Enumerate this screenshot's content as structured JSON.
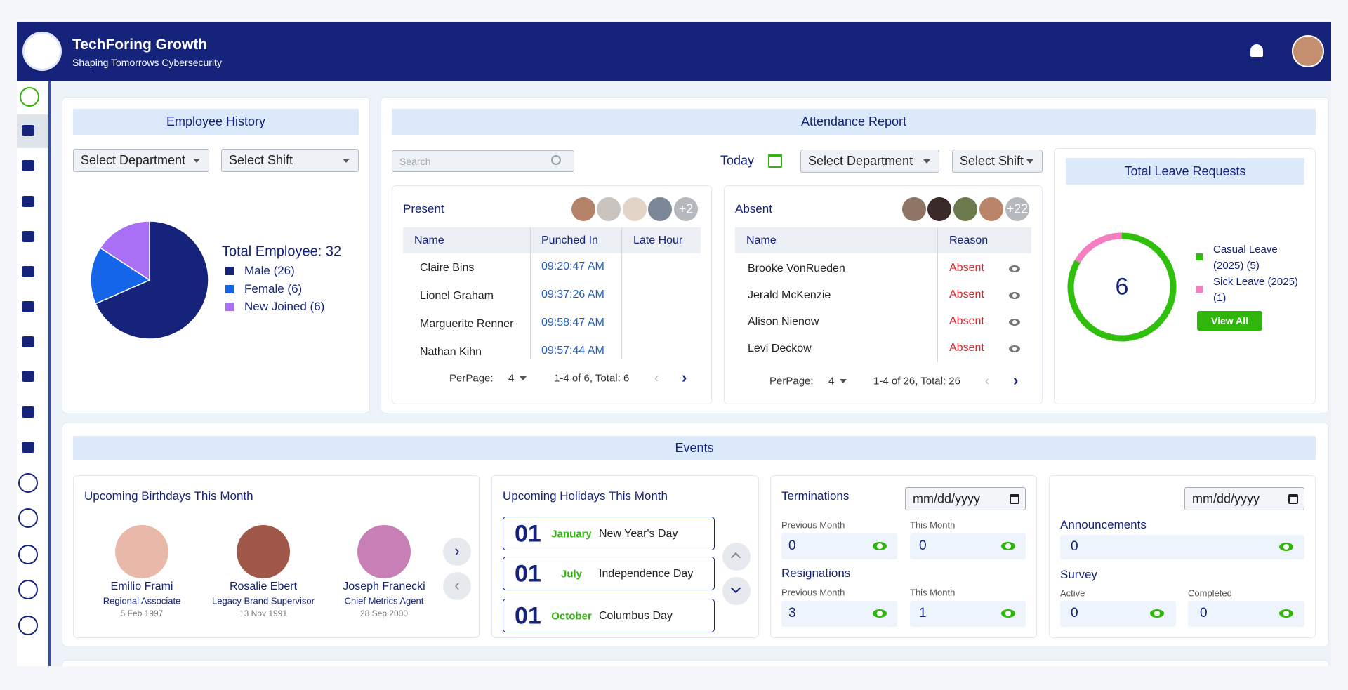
{
  "header": {
    "title": "TechForing Growth",
    "subtitle": "Shaping Tomorrows Cybersecurity"
  },
  "employee_history": {
    "title": "Employee History",
    "department_select": "Select Department",
    "shift_select": "Select Shift",
    "total": "Total Employee: 32",
    "chart": {
      "type": "pie",
      "values": [
        26,
        6,
        6
      ],
      "value_labels": [
        "Male (26)",
        "Female (6)",
        "New Joined (6)"
      ],
      "colors": [
        "#15237a",
        "#1565e8",
        "#a970f5"
      ]
    }
  },
  "attendance": {
    "title": "Attendance Report",
    "search_placeholder": "Search",
    "today": "Today",
    "department_select": "Select Department",
    "shift_select": "Select Shift",
    "present": {
      "title": "Present",
      "more": "+2",
      "columns": [
        "Name",
        "Punched In",
        "Late Hour"
      ],
      "rows": [
        [
          "Claire Bins",
          "09:20:47 AM"
        ],
        [
          "Lionel Graham",
          "09:37:26 AM"
        ],
        [
          "Marguerite Renner",
          "09:58:47 AM"
        ],
        [
          "Nathan Kihn",
          "09:57:44 AM"
        ]
      ],
      "per_page_label": "PerPage:",
      "per_page": "4",
      "range": "1-4 of 6, Total: 6"
    },
    "absent": {
      "title": "Absent",
      "more": "+22",
      "columns": [
        "Name",
        "Reason"
      ],
      "rows": [
        [
          "Brooke VonRueden",
          "Absent"
        ],
        [
          "Jerald McKenzie",
          "Absent"
        ],
        [
          "Alison Nienow",
          "Absent"
        ],
        [
          "Levi Deckow",
          "Absent"
        ]
      ],
      "per_page_label": "PerPage:",
      "per_page": "4",
      "range": "1-4 of 26, Total: 26"
    }
  },
  "leave": {
    "title": "Total Leave Requests",
    "total": 6,
    "button": "View All",
    "chart": {
      "type": "donut",
      "values": [
        5,
        1
      ],
      "value_labels": [
        "Casual Leave (2025) (5)",
        "Sick Leave (2025) (1)"
      ],
      "colors": [
        "#2fbf0c",
        "#f57ec0"
      ]
    }
  },
  "events": {
    "title": "Events",
    "birthdays": {
      "title": "Upcoming Birthdays This Month",
      "people": [
        {
          "name": "Emilio Frami",
          "role": "Regional Associate",
          "date": "5 Feb 1997"
        },
        {
          "name": "Rosalie Ebert",
          "role": "Legacy Brand Supervisor",
          "date": "13 Nov 1991"
        },
        {
          "name": "Joseph Franecki",
          "role": "Chief Metrics Agent",
          "date": "28 Sep 2000"
        }
      ]
    },
    "holidays": {
      "title": "Upcoming Holidays This Month",
      "items": [
        {
          "day": "01",
          "month": "January",
          "name": "New Year's Day"
        },
        {
          "day": "01",
          "month": "July",
          "name": "Independence Day"
        },
        {
          "day": "01",
          "month": "October",
          "name": "Columbus Day"
        }
      ]
    },
    "terminations": {
      "title": "Terminations",
      "date_placeholder": "mm/dd/yyyy",
      "previous_label": "Previous Month",
      "this_label": "This Month",
      "previous": 0,
      "this": 0
    },
    "resignations": {
      "title": "Resignations",
      "previous_label": "Previous Month",
      "this_label": "This Month",
      "previous": 3,
      "this": 1
    },
    "announcements": {
      "title": "Announcements",
      "date_placeholder": "mm/dd/yyyy",
      "value": 0
    },
    "survey": {
      "title": "Survey",
      "active_label": "Active",
      "active": 0,
      "completed_label": "Completed",
      "completed": 0
    }
  }
}
